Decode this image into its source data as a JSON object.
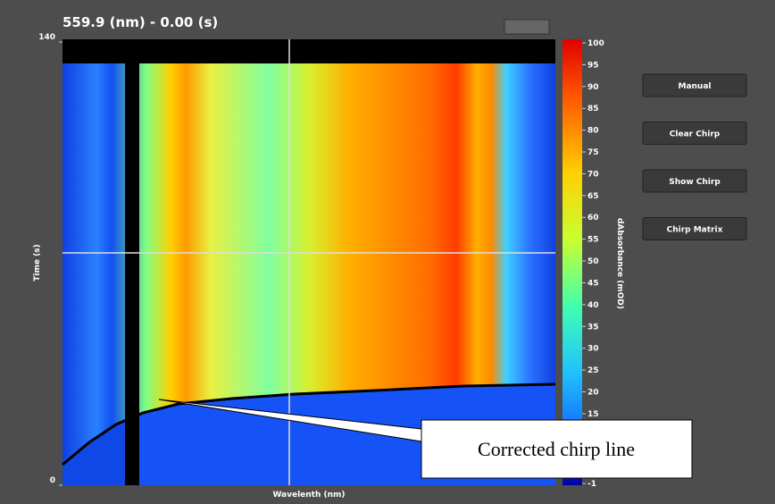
{
  "window": {
    "title": "559.9 (nm) - 0.00 (s)",
    "plot": {
      "ylabel": "Time (s)",
      "xlabel": "Wavelenth (nm)",
      "ylim": [
        0,
        140
      ],
      "yticks": [
        0,
        140
      ]
    },
    "colorbar": {
      "label": "dAbsorbance (mOD)",
      "lim": [
        -1,
        100
      ],
      "ticks": [
        100,
        95,
        90,
        85,
        80,
        75,
        70,
        65,
        60,
        55,
        50,
        45,
        40,
        35,
        30,
        25,
        20,
        15,
        -1
      ]
    },
    "buttons": [
      "Manual",
      "Clear Chirp",
      "Show Chirp",
      "Chirp Matrix"
    ],
    "annotation": "Corrected chirp line"
  }
}
